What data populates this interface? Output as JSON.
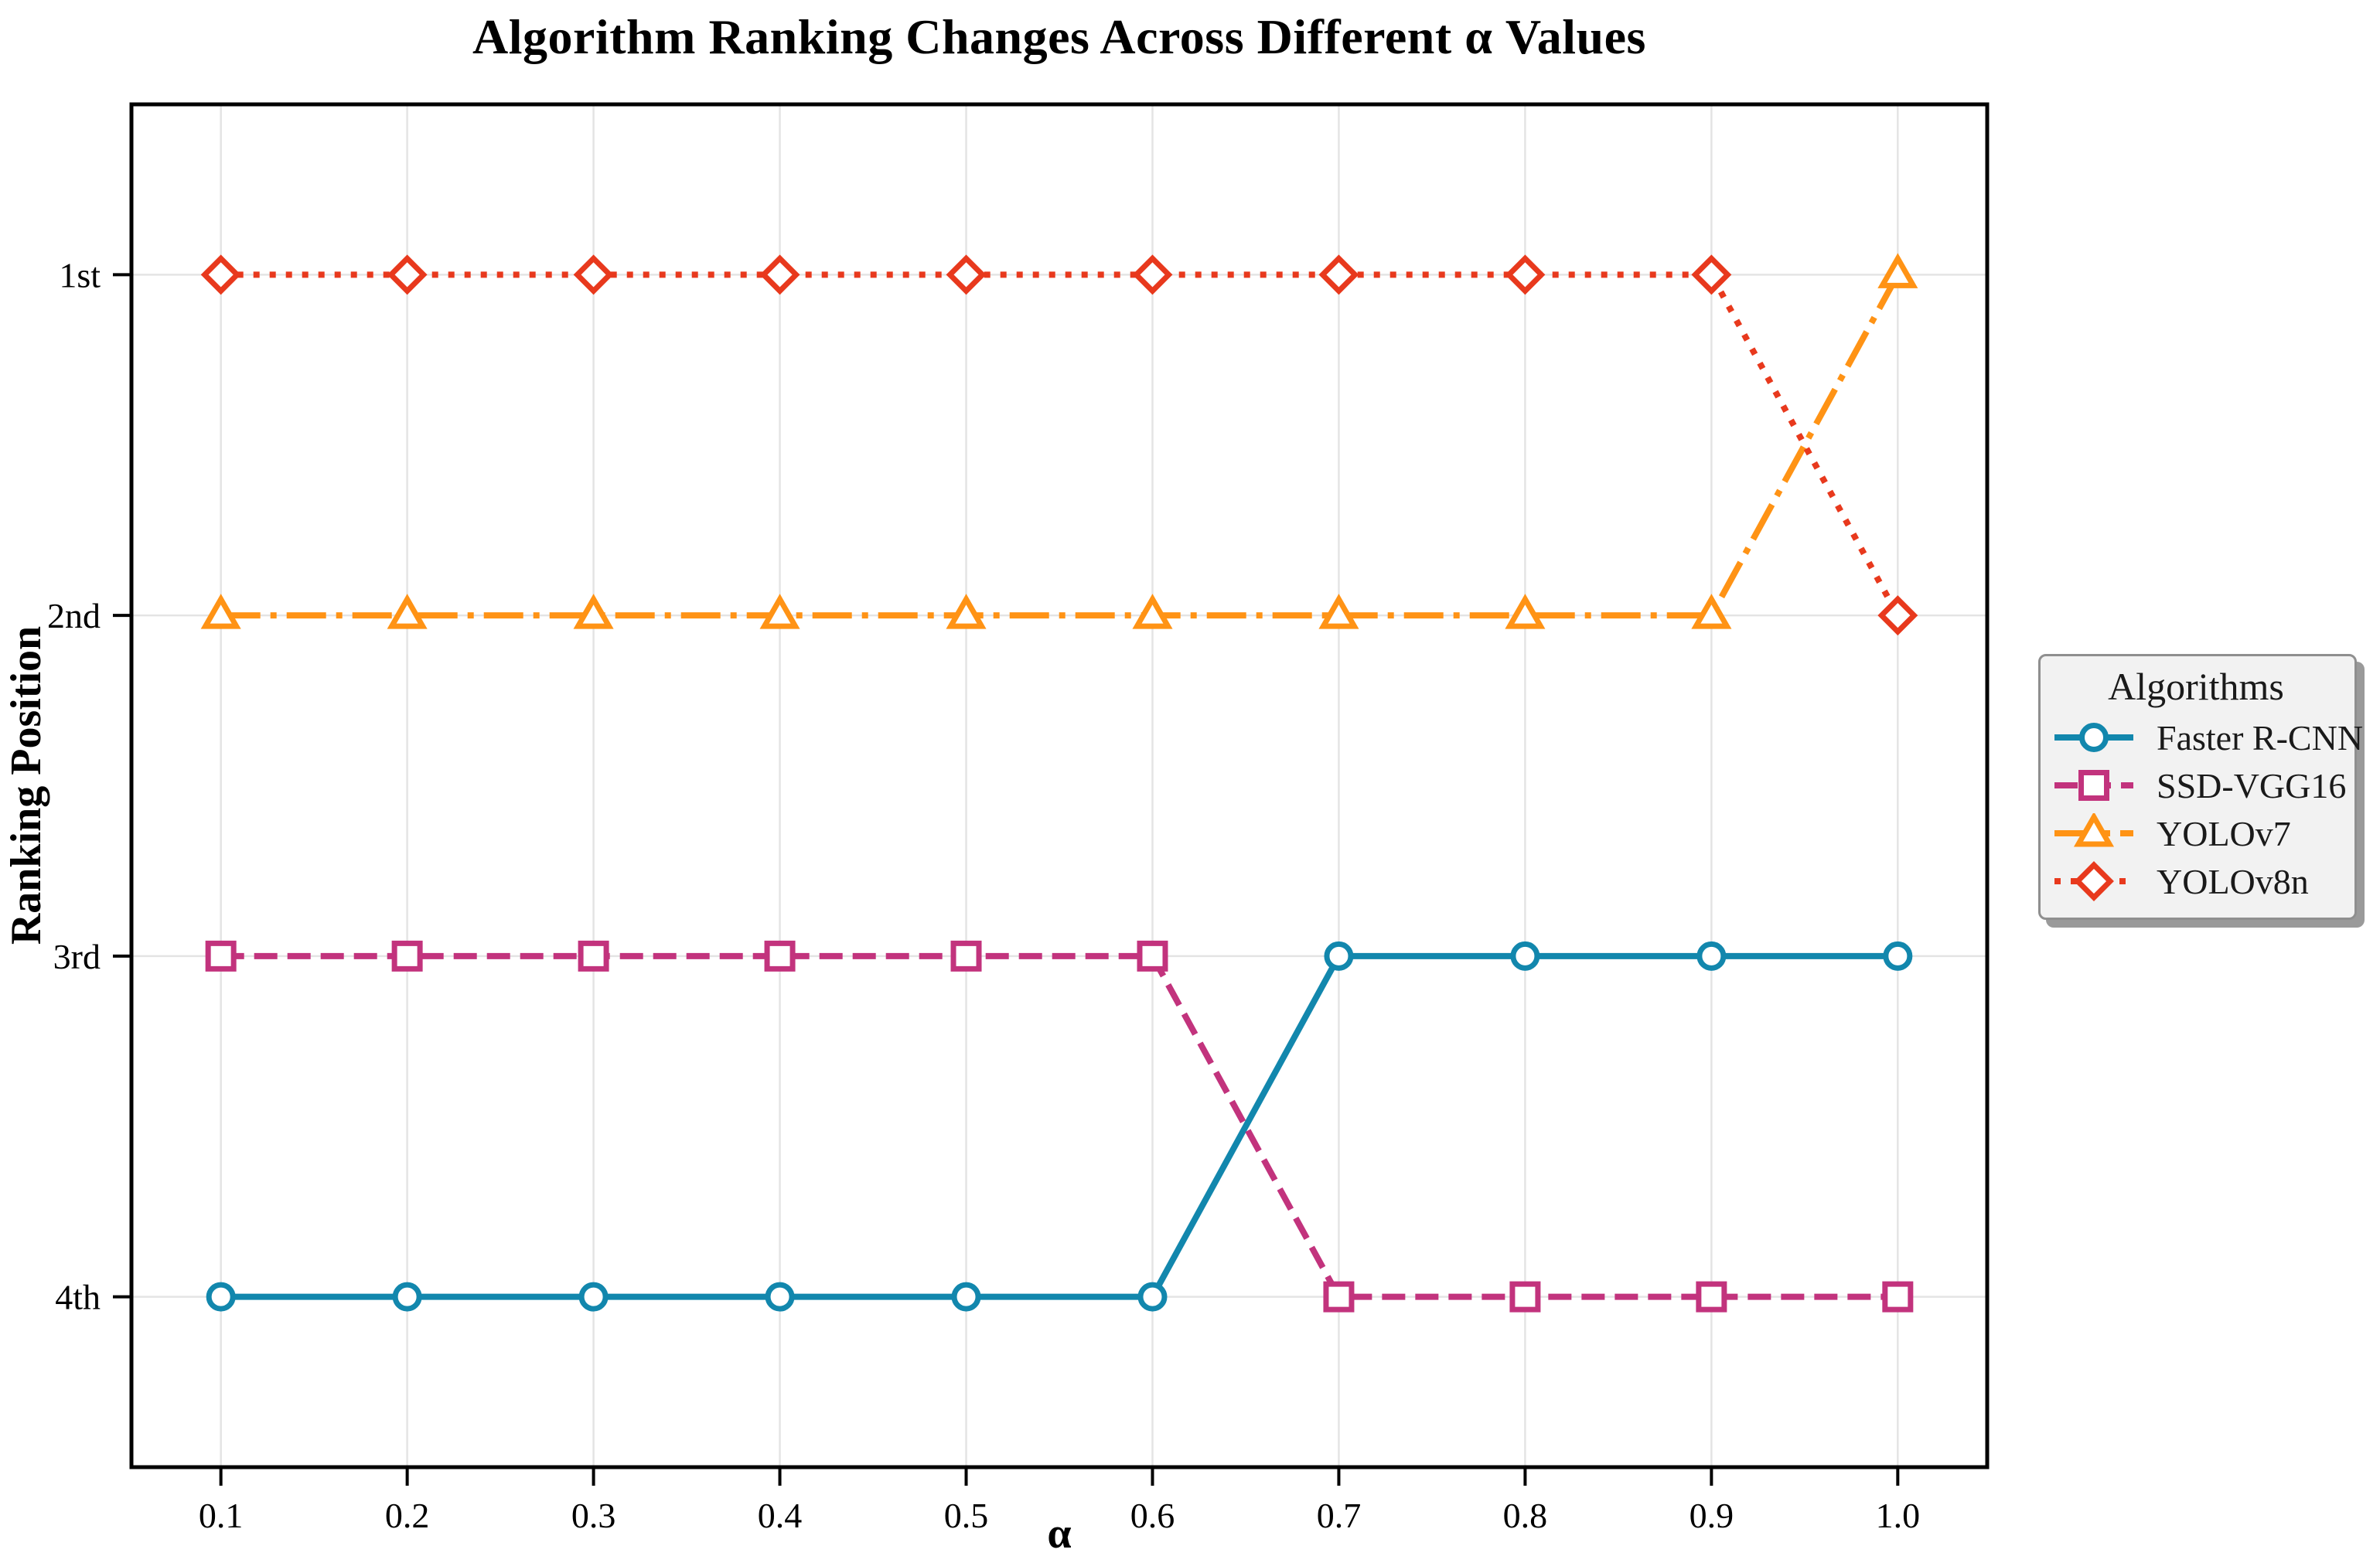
{
  "chart_data": {
    "type": "line",
    "title": "Algorithm Ranking Changes Across Different α Values",
    "xlabel": "α",
    "ylabel": "Ranking Position",
    "x": [
      0.1,
      0.2,
      0.3,
      0.4,
      0.5,
      0.6,
      0.7,
      0.8,
      0.9,
      1.0
    ],
    "x_tick_labels": [
      "0.1",
      "0.2",
      "0.3",
      "0.4",
      "0.5",
      "0.6",
      "0.7",
      "0.8",
      "0.9",
      "1.0"
    ],
    "y_tick_positions": [
      1,
      2,
      3,
      4
    ],
    "y_tick_labels": [
      "1st",
      "2nd",
      "3rd",
      "4th"
    ],
    "xlim": [
      0.052,
      1.048
    ],
    "ylim_top_to_bottom": [
      0.5,
      4.5
    ],
    "y_axis_inverted": true,
    "grid": true,
    "legend": {
      "title": "Algorithms",
      "position": "outside-right"
    },
    "series": [
      {
        "name": "Faster R-CNN",
        "color": "#1287ad",
        "linestyle": "solid",
        "marker": "circle",
        "rankings": [
          4,
          4,
          4,
          4,
          4,
          4,
          3,
          3,
          3,
          3
        ]
      },
      {
        "name": "SSD-VGG16",
        "color": "#c2337d",
        "linestyle": "dashed",
        "marker": "square",
        "rankings": [
          3,
          3,
          3,
          3,
          3,
          3,
          4,
          4,
          4,
          4
        ]
      },
      {
        "name": "YOLOv7",
        "color": "#ff9315",
        "linestyle": "dashdot",
        "marker": "triangle",
        "rankings": [
          2,
          2,
          2,
          2,
          2,
          2,
          2,
          2,
          2,
          1
        ]
      },
      {
        "name": "YOLOv8n",
        "color": "#e8391d",
        "linestyle": "dotted",
        "marker": "diamond",
        "rankings": [
          1,
          1,
          1,
          1,
          1,
          1,
          1,
          1,
          1,
          2
        ]
      }
    ]
  },
  "colors": {
    "background": "#ffffff",
    "grid": "#e4e4e4",
    "spine": "#000000",
    "tick": "#000000",
    "text": "#000000",
    "legend_background": "#f2f2f2",
    "legend_border": "#8f8f8f",
    "legend_shadow": "#9a9a9a"
  }
}
